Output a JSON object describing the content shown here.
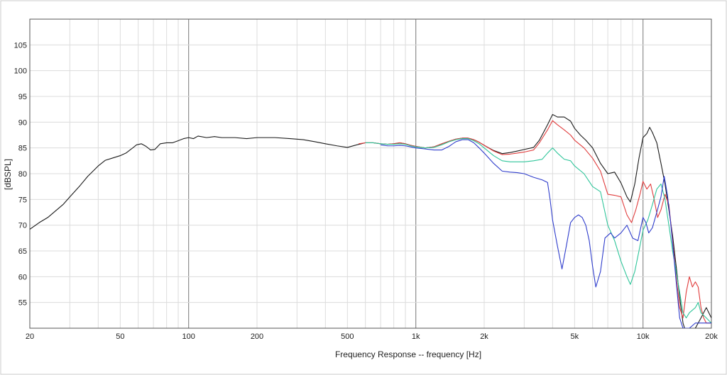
{
  "chart_data": {
    "type": "line",
    "title": "",
    "xlabel": "Frequency Response -- frequency [Hz]",
    "ylabel": "[dBSPL]",
    "x_scale": "log",
    "xlim": [
      20,
      20000
    ],
    "ylim": [
      50,
      110
    ],
    "grid": true,
    "legend": "none",
    "x_ticks": [
      {
        "value": 20,
        "label": "20"
      },
      {
        "value": 50,
        "label": "50"
      },
      {
        "value": 100,
        "label": "100"
      },
      {
        "value": 200,
        "label": "200"
      },
      {
        "value": 500,
        "label": "500"
      },
      {
        "value": 1000,
        "label": "1k"
      },
      {
        "value": 2000,
        "label": "2k"
      },
      {
        "value": 5000,
        "label": "5k"
      },
      {
        "value": 10000,
        "label": "10k"
      },
      {
        "value": 20000,
        "label": "20k"
      }
    ],
    "y_ticks": [
      {
        "value": 55,
        "label": "55"
      },
      {
        "value": 60,
        "label": "60"
      },
      {
        "value": 65,
        "label": "65"
      },
      {
        "value": 70,
        "label": "70"
      },
      {
        "value": 75,
        "label": "75"
      },
      {
        "value": 80,
        "label": "80"
      },
      {
        "value": 85,
        "label": "85"
      },
      {
        "value": 90,
        "label": "90"
      },
      {
        "value": 95,
        "label": "95"
      },
      {
        "value": 100,
        "label": "100"
      },
      {
        "value": 105,
        "label": "105"
      }
    ],
    "series": [
      {
        "color": "#1a1a1a",
        "points": [
          [
            20,
            69.2
          ],
          [
            22,
            70.5
          ],
          [
            24,
            71.5
          ],
          [
            26,
            72.8
          ],
          [
            28,
            74
          ],
          [
            30,
            75.5
          ],
          [
            33,
            77.5
          ],
          [
            36,
            79.5
          ],
          [
            40,
            81.5
          ],
          [
            43,
            82.6
          ],
          [
            46,
            83
          ],
          [
            50,
            83.5
          ],
          [
            53,
            84
          ],
          [
            56,
            84.8
          ],
          [
            59,
            85.6
          ],
          [
            62,
            85.8
          ],
          [
            65,
            85.3
          ],
          [
            68,
            84.6
          ],
          [
            71,
            84.7
          ],
          [
            75,
            85.8
          ],
          [
            80,
            86
          ],
          [
            85,
            86
          ],
          [
            90,
            86.4
          ],
          [
            95,
            86.8
          ],
          [
            100,
            87
          ],
          [
            105,
            86.8
          ],
          [
            110,
            87.3
          ],
          [
            120,
            87
          ],
          [
            130,
            87.2
          ],
          [
            140,
            87
          ],
          [
            160,
            87
          ],
          [
            180,
            86.8
          ],
          [
            200,
            87
          ],
          [
            240,
            87
          ],
          [
            280,
            86.8
          ],
          [
            320,
            86.6
          ],
          [
            360,
            86.2
          ],
          [
            400,
            85.8
          ],
          [
            450,
            85.4
          ],
          [
            500,
            85.1
          ],
          [
            550,
            85.6
          ],
          [
            600,
            86
          ],
          [
            650,
            86
          ],
          [
            700,
            85.8
          ],
          [
            750,
            85.7
          ],
          [
            800,
            85.8
          ],
          [
            850,
            86
          ],
          [
            900,
            85.8
          ],
          [
            950,
            85.5
          ],
          [
            1000,
            85.3
          ],
          [
            1100,
            85
          ],
          [
            1200,
            85.2
          ],
          [
            1300,
            85.8
          ],
          [
            1400,
            86.3
          ],
          [
            1500,
            86.7
          ],
          [
            1600,
            86.9
          ],
          [
            1700,
            86.9
          ],
          [
            1800,
            86.6
          ],
          [
            1900,
            86.1
          ],
          [
            2000,
            85.5
          ],
          [
            2200,
            84.5
          ],
          [
            2400,
            83.9
          ],
          [
            2600,
            84.1
          ],
          [
            2800,
            84.4
          ],
          [
            3000,
            84.7
          ],
          [
            3300,
            85.1
          ],
          [
            3500,
            86.5
          ],
          [
            3800,
            89.5
          ],
          [
            4000,
            91.5
          ],
          [
            4200,
            91
          ],
          [
            4500,
            91
          ],
          [
            4800,
            90.2
          ],
          [
            5000,
            88.8
          ],
          [
            5300,
            87.5
          ],
          [
            5600,
            86.5
          ],
          [
            6000,
            85
          ],
          [
            6500,
            82
          ],
          [
            7000,
            80
          ],
          [
            7500,
            80.3
          ],
          [
            8000,
            78.2
          ],
          [
            8500,
            75.5
          ],
          [
            8800,
            74.5
          ],
          [
            9200,
            78
          ],
          [
            9600,
            83
          ],
          [
            10000,
            87
          ],
          [
            10400,
            87.8
          ],
          [
            10700,
            89
          ],
          [
            11000,
            88
          ],
          [
            11500,
            86
          ],
          [
            12000,
            82
          ],
          [
            12500,
            78
          ],
          [
            13000,
            73
          ],
          [
            13500,
            68
          ],
          [
            14000,
            62
          ],
          [
            14600,
            55
          ],
          [
            15000,
            51
          ],
          [
            15500,
            49
          ],
          [
            16000,
            49
          ],
          [
            17000,
            50
          ],
          [
            18000,
            52
          ],
          [
            19000,
            54
          ],
          [
            20000,
            52
          ]
        ]
      },
      {
        "color": "#e03c3c",
        "points": [
          [
            560,
            85.8
          ],
          [
            600,
            86
          ],
          [
            650,
            86
          ],
          [
            700,
            85.8
          ],
          [
            750,
            85.7
          ],
          [
            800,
            85.8
          ],
          [
            850,
            86
          ],
          [
            900,
            85.8
          ],
          [
            950,
            85.5
          ],
          [
            1000,
            85.3
          ],
          [
            1100,
            85
          ],
          [
            1200,
            85.2
          ],
          [
            1300,
            85.8
          ],
          [
            1400,
            86.3
          ],
          [
            1500,
            86.7
          ],
          [
            1600,
            86.9
          ],
          [
            1700,
            86.9
          ],
          [
            1800,
            86.6
          ],
          [
            1900,
            86.1
          ],
          [
            2000,
            85.5
          ],
          [
            2200,
            84.4
          ],
          [
            2400,
            83.7
          ],
          [
            2600,
            83.8
          ],
          [
            2800,
            84
          ],
          [
            3000,
            84.2
          ],
          [
            3300,
            84.6
          ],
          [
            3500,
            86
          ],
          [
            3800,
            88.5
          ],
          [
            4000,
            90.3
          ],
          [
            4200,
            89.5
          ],
          [
            4500,
            88.5
          ],
          [
            4800,
            87.5
          ],
          [
            5000,
            86.5
          ],
          [
            5500,
            85
          ],
          [
            6000,
            83
          ],
          [
            6500,
            80.5
          ],
          [
            7000,
            76
          ],
          [
            7500,
            75.8
          ],
          [
            8000,
            75.5
          ],
          [
            8500,
            72
          ],
          [
            8900,
            70.5
          ],
          [
            9300,
            73
          ],
          [
            9700,
            76
          ],
          [
            10000,
            78.5
          ],
          [
            10400,
            77
          ],
          [
            10800,
            78
          ],
          [
            11200,
            75
          ],
          [
            11600,
            71.5
          ],
          [
            12000,
            73
          ],
          [
            12500,
            76
          ],
          [
            13000,
            74
          ],
          [
            13500,
            67
          ],
          [
            14000,
            60
          ],
          [
            14500,
            54
          ],
          [
            15000,
            52
          ],
          [
            15500,
            57
          ],
          [
            16000,
            60
          ],
          [
            16500,
            58
          ],
          [
            17000,
            59
          ],
          [
            17500,
            58
          ],
          [
            18000,
            54
          ],
          [
            18500,
            52
          ],
          [
            19000,
            51
          ],
          [
            20000,
            51
          ]
        ]
      },
      {
        "color": "#2fc59a",
        "points": [
          [
            600,
            86
          ],
          [
            650,
            86
          ],
          [
            700,
            85.8
          ],
          [
            750,
            85.7
          ],
          [
            800,
            85.7
          ],
          [
            850,
            85.8
          ],
          [
            900,
            85.7
          ],
          [
            950,
            85.4
          ],
          [
            1000,
            85.2
          ],
          [
            1100,
            85
          ],
          [
            1200,
            85.1
          ],
          [
            1300,
            85.6
          ],
          [
            1400,
            86.2
          ],
          [
            1500,
            86.6
          ],
          [
            1600,
            86.8
          ],
          [
            1700,
            86.8
          ],
          [
            1800,
            86.4
          ],
          [
            1900,
            85.8
          ],
          [
            2000,
            85
          ],
          [
            2200,
            83.5
          ],
          [
            2400,
            82.5
          ],
          [
            2600,
            82.3
          ],
          [
            2800,
            82.3
          ],
          [
            3000,
            82.3
          ],
          [
            3300,
            82.5
          ],
          [
            3600,
            82.8
          ],
          [
            3800,
            84
          ],
          [
            4000,
            85
          ],
          [
            4200,
            84
          ],
          [
            4500,
            82.8
          ],
          [
            4800,
            82.5
          ],
          [
            5000,
            81.5
          ],
          [
            5500,
            80
          ],
          [
            6000,
            77.5
          ],
          [
            6500,
            76.5
          ],
          [
            7000,
            70
          ],
          [
            7500,
            67
          ],
          [
            8000,
            63
          ],
          [
            8500,
            60
          ],
          [
            8800,
            58.5
          ],
          [
            9200,
            61
          ],
          [
            9600,
            65
          ],
          [
            10000,
            69
          ],
          [
            10500,
            71
          ],
          [
            11000,
            74
          ],
          [
            11500,
            77
          ],
          [
            12000,
            78
          ],
          [
            12500,
            75
          ],
          [
            13000,
            70
          ],
          [
            13500,
            65
          ],
          [
            14000,
            61
          ],
          [
            14500,
            57
          ],
          [
            15000,
            53
          ],
          [
            15500,
            52
          ],
          [
            16000,
            53
          ],
          [
            17000,
            54
          ],
          [
            17500,
            55
          ],
          [
            18000,
            53
          ],
          [
            19000,
            52
          ],
          [
            20000,
            51
          ]
        ]
      },
      {
        "color": "#2f3dcc",
        "points": [
          [
            700,
            85.6
          ],
          [
            750,
            85.4
          ],
          [
            800,
            85.4
          ],
          [
            850,
            85.5
          ],
          [
            900,
            85.4
          ],
          [
            950,
            85.2
          ],
          [
            1000,
            85
          ],
          [
            1100,
            84.8
          ],
          [
            1200,
            84.6
          ],
          [
            1300,
            84.6
          ],
          [
            1400,
            85.3
          ],
          [
            1500,
            86.2
          ],
          [
            1600,
            86.6
          ],
          [
            1700,
            86.6
          ],
          [
            1800,
            86
          ],
          [
            1900,
            85
          ],
          [
            2000,
            84
          ],
          [
            2200,
            82
          ],
          [
            2400,
            80.5
          ],
          [
            2600,
            80.3
          ],
          [
            2800,
            80.2
          ],
          [
            3000,
            80
          ],
          [
            3300,
            79.3
          ],
          [
            3600,
            78.8
          ],
          [
            3800,
            78.3
          ],
          [
            3900,
            75
          ],
          [
            4000,
            71
          ],
          [
            4200,
            66
          ],
          [
            4400,
            61.5
          ],
          [
            4600,
            66
          ],
          [
            4800,
            70.5
          ],
          [
            5000,
            71.5
          ],
          [
            5200,
            72
          ],
          [
            5400,
            71.5
          ],
          [
            5600,
            70
          ],
          [
            5800,
            67
          ],
          [
            6000,
            62
          ],
          [
            6200,
            58
          ],
          [
            6500,
            61
          ],
          [
            6800,
            67.5
          ],
          [
            7200,
            68.5
          ],
          [
            7500,
            67.5
          ],
          [
            8000,
            68.5
          ],
          [
            8500,
            70
          ],
          [
            9000,
            67.5
          ],
          [
            9500,
            67
          ],
          [
            10000,
            71.5
          ],
          [
            10300,
            70.5
          ],
          [
            10600,
            68.5
          ],
          [
            11000,
            69.5
          ],
          [
            11500,
            72.5
          ],
          [
            12000,
            75.5
          ],
          [
            12400,
            79.5
          ],
          [
            12800,
            76
          ],
          [
            13200,
            71
          ],
          [
            13600,
            65
          ],
          [
            14000,
            59
          ],
          [
            14500,
            52
          ],
          [
            15000,
            50
          ],
          [
            16000,
            50
          ],
          [
            17000,
            51
          ],
          [
            18000,
            51
          ],
          [
            20000,
            51
          ]
        ]
      }
    ]
  }
}
